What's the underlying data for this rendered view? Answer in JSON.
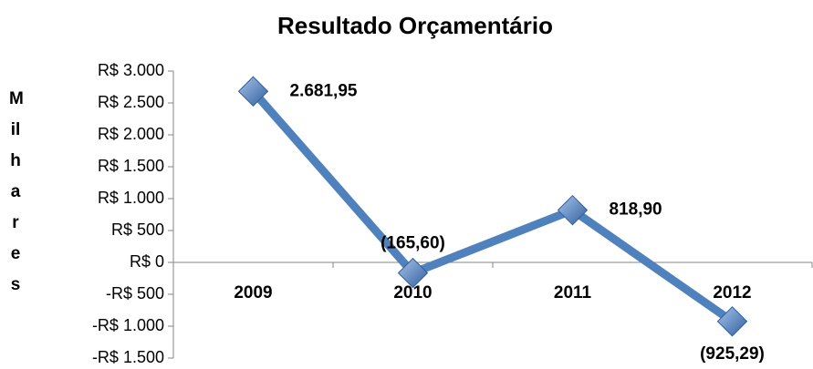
{
  "chart_data": {
    "type": "line",
    "title": "Resultado Orçamentário",
    "y_label": "Milhares",
    "categories": [
      "2009",
      "2010",
      "2011",
      "2012"
    ],
    "series": [
      {
        "name": "Resultado",
        "color": "#4f81bd",
        "values": [
          2681.95,
          -165.6,
          818.9,
          -925.29
        ],
        "value_labels": [
          "2.681,95",
          "(165,60)",
          "818,90",
          "(925,29)"
        ]
      }
    ],
    "ylim": [
      -1500,
      3000
    ],
    "yticks": [
      {
        "value": -1500,
        "label": "-R$ 1.500"
      },
      {
        "value": -1000,
        "label": "-R$ 1.000"
      },
      {
        "value": -500,
        "label": "-R$ 500"
      },
      {
        "value": 0,
        "label": "R$ 0"
      },
      {
        "value": 500,
        "label": "R$ 500"
      },
      {
        "value": 1000,
        "label": "R$ 1.000"
      },
      {
        "value": 1500,
        "label": "R$ 1.500"
      },
      {
        "value": 2000,
        "label": "R$ 2.000"
      },
      {
        "value": 2500,
        "label": "R$ 2.500"
      },
      {
        "value": 3000,
        "label": "R$ 3.000"
      }
    ],
    "grid": false
  }
}
